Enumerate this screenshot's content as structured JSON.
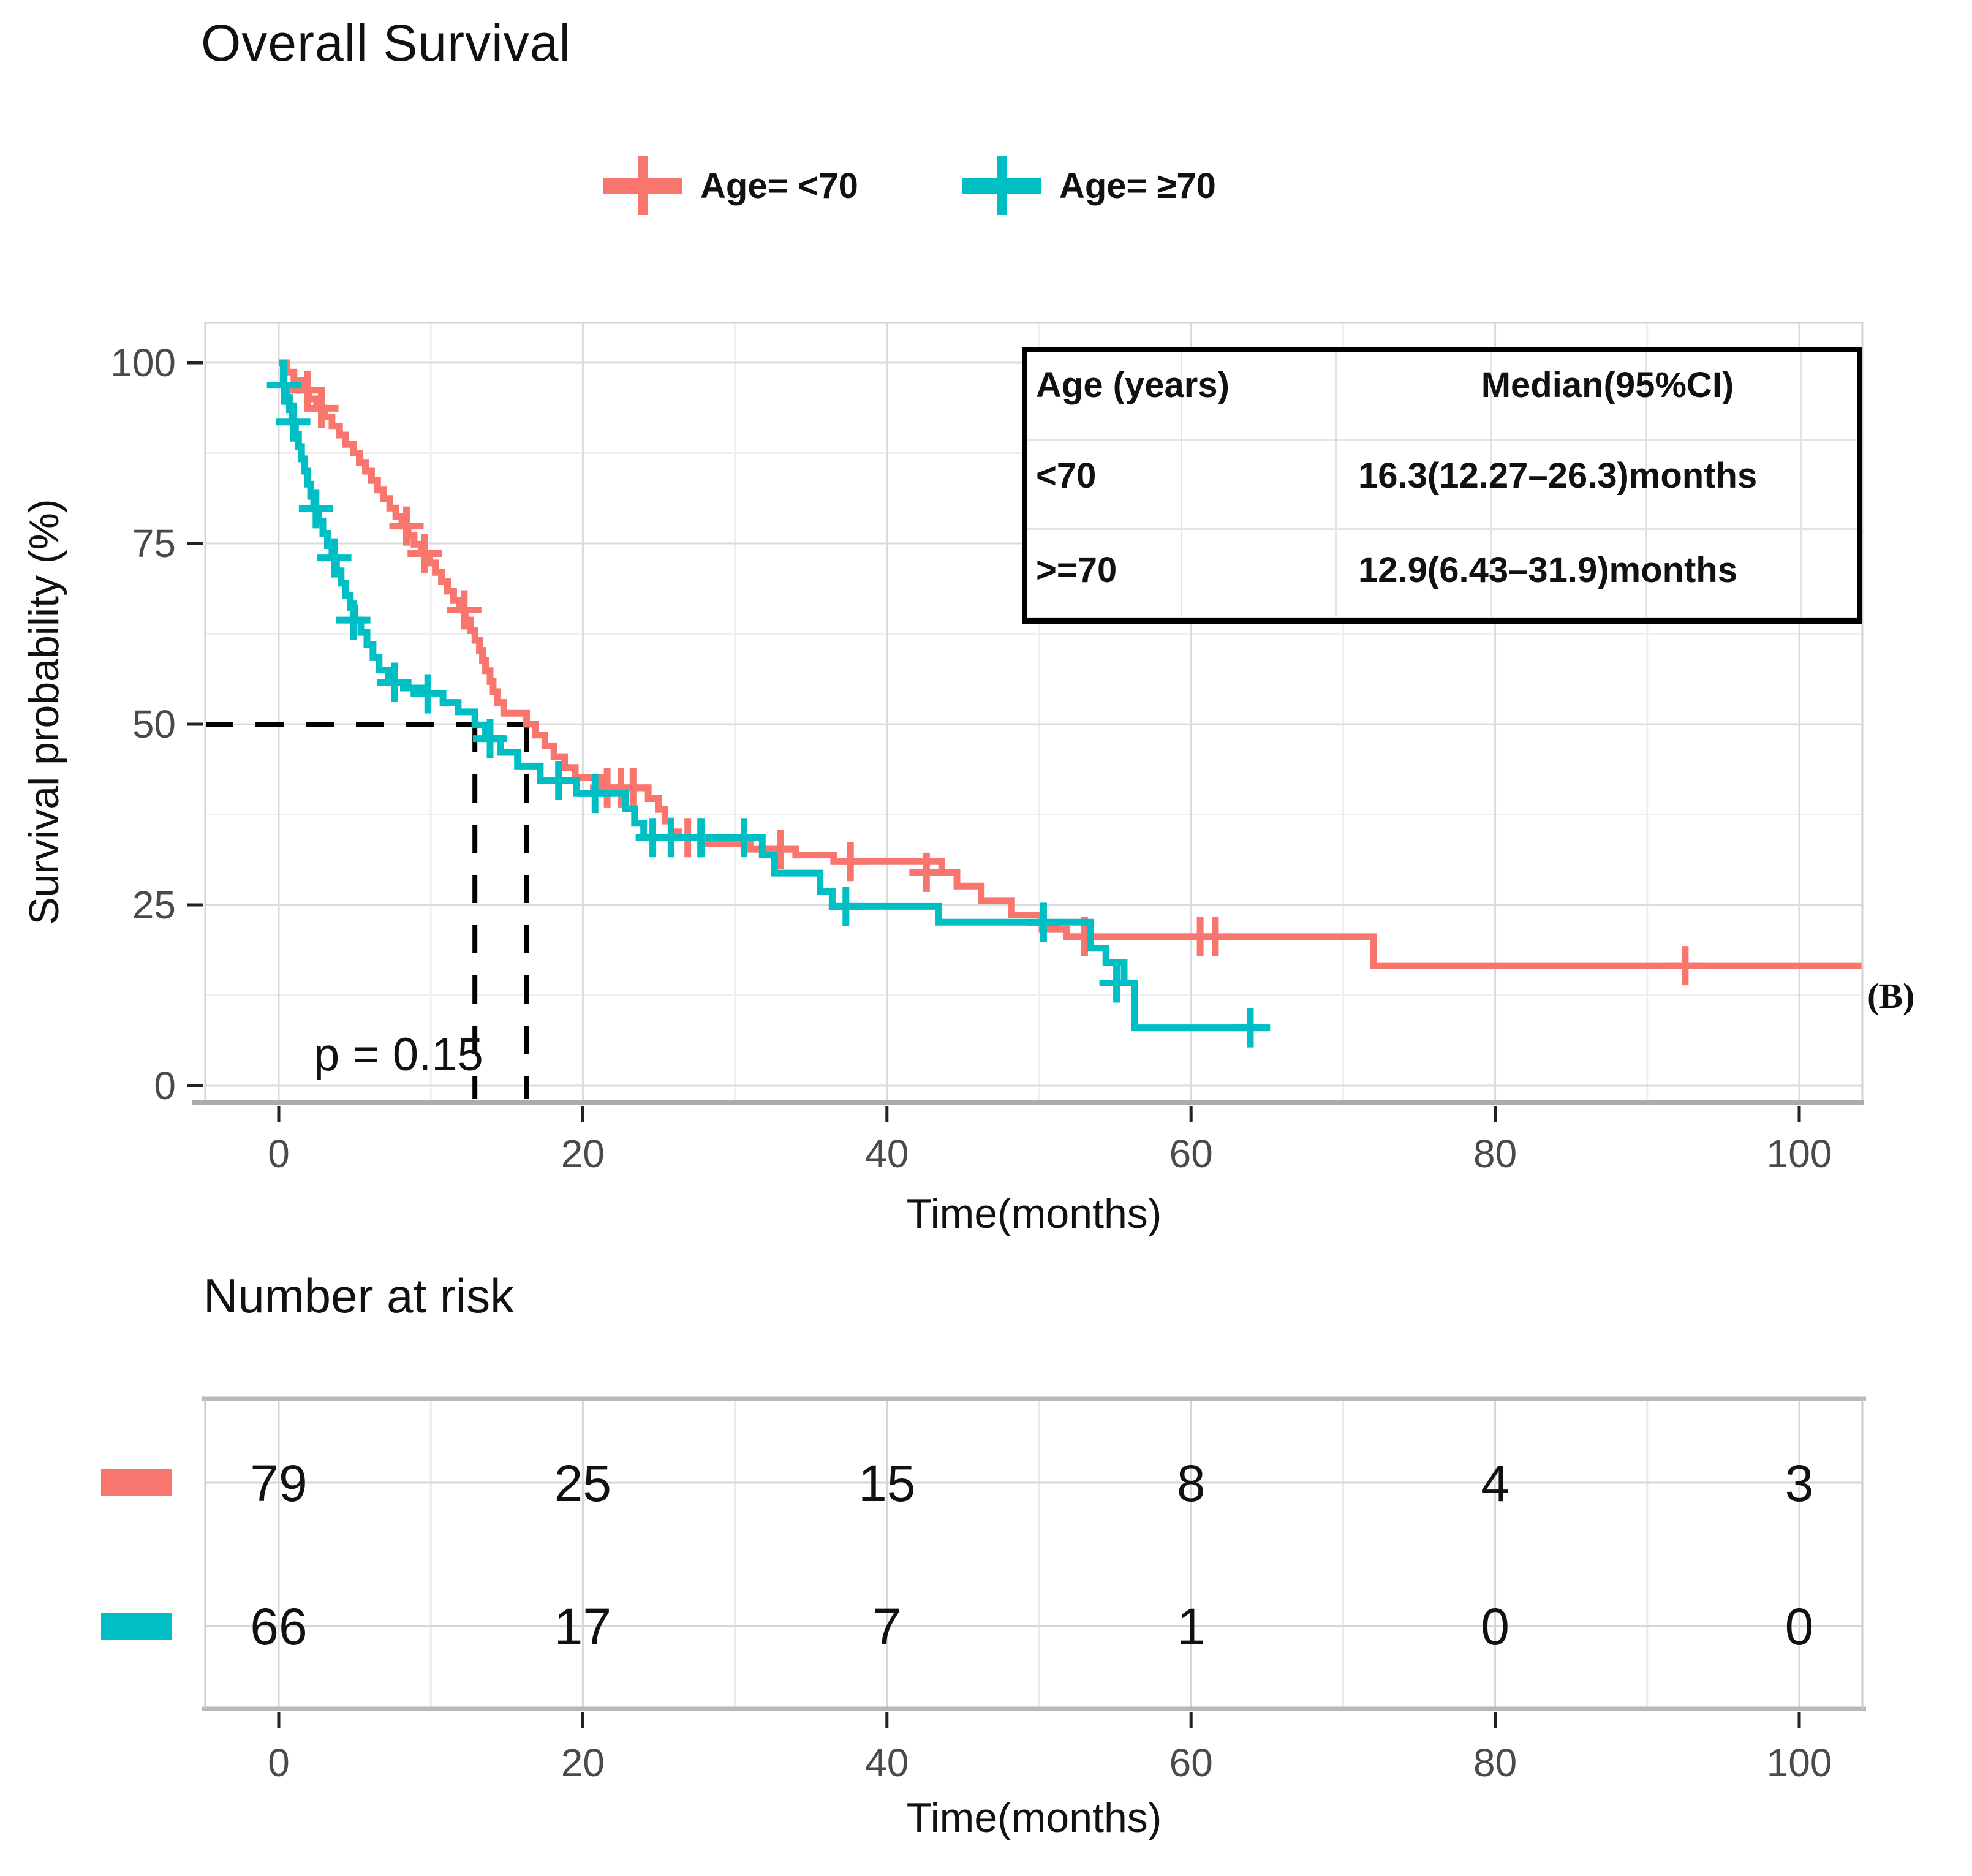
{
  "title": "Overall Survival",
  "panel_label": "(B)",
  "legend": {
    "items": [
      {
        "label": "Age= <70",
        "color": "#F8766D"
      },
      {
        "label": "Age= ≥70",
        "color": "#00BFC4"
      }
    ]
  },
  "chart_data": {
    "type": "line",
    "subtype": "kaplan-meier-step",
    "title": "Overall Survival",
    "xlabel": "Time(months)",
    "ylabel": "Survival probability (%)",
    "xlim": [
      -5,
      104.5
    ],
    "ylim": [
      -2,
      105.5
    ],
    "x_ticks": [
      0,
      20,
      40,
      60,
      80,
      100
    ],
    "y_ticks": [
      0,
      25,
      50,
      75,
      100
    ],
    "x_minor_gridlines": [
      10,
      30,
      50,
      70,
      90
    ],
    "y_minor_gridlines": [
      12.5,
      37.5,
      62.5,
      87.5
    ],
    "grid": true,
    "legend_position": "top-center",
    "p_value_text": "p = 0.15",
    "median_lines": {
      "y": 50,
      "x_values": [
        12.9,
        16.3
      ]
    },
    "series": [
      {
        "name": "Age= <70",
        "color": "#F8766D",
        "end_time": 104.3,
        "steps": [
          [
            0,
            100
          ],
          [
            0.5,
            98.7
          ],
          [
            1,
            97.5
          ],
          [
            1.5,
            96.2
          ],
          [
            2,
            95
          ],
          [
            2.5,
            93.7
          ],
          [
            3,
            92.5
          ],
          [
            3.5,
            91.2
          ],
          [
            4,
            90
          ],
          [
            4.4,
            88.7
          ],
          [
            4.9,
            87.5
          ],
          [
            5.3,
            86.2
          ],
          [
            5.7,
            85
          ],
          [
            6.1,
            83.7
          ],
          [
            6.5,
            82.4
          ],
          [
            6.9,
            81.2
          ],
          [
            7.3,
            79.9
          ],
          [
            7.7,
            78.7
          ],
          [
            8.1,
            77.4
          ],
          [
            8.5,
            76.1
          ],
          [
            8.9,
            74.9
          ],
          [
            9.4,
            73.6
          ],
          [
            9.9,
            72.3
          ],
          [
            10.3,
            71
          ],
          [
            10.7,
            69.7
          ],
          [
            11.1,
            68.4
          ],
          [
            11.5,
            67.1
          ],
          [
            11.9,
            65.8
          ],
          [
            12.3,
            64.4
          ],
          [
            12.6,
            63
          ],
          [
            12.9,
            61.6
          ],
          [
            13.2,
            60.2
          ],
          [
            13.4,
            58.8
          ],
          [
            13.6,
            57.4
          ],
          [
            13.9,
            55.9
          ],
          [
            14.1,
            54.5
          ],
          [
            14.4,
            53
          ],
          [
            14.8,
            51.5
          ],
          [
            16.3,
            50
          ],
          [
            16.9,
            48.5
          ],
          [
            17.5,
            47
          ],
          [
            18.1,
            45.5
          ],
          [
            18.8,
            44
          ],
          [
            19.5,
            42.6
          ],
          [
            21.2,
            41.2
          ],
          [
            24.3,
            39.7
          ],
          [
            25,
            38.2
          ],
          [
            25.4,
            36.6
          ],
          [
            25.8,
            35.1
          ],
          [
            26.3,
            34.3
          ],
          [
            28,
            33.5
          ],
          [
            31,
            32.7
          ],
          [
            34,
            31.9
          ],
          [
            36.5,
            31
          ],
          [
            43.6,
            29.5
          ],
          [
            44.6,
            27.6
          ],
          [
            46.2,
            25.6
          ],
          [
            48.2,
            23.6
          ],
          [
            50.2,
            21.6
          ],
          [
            51.8,
            20.6
          ],
          [
            72,
            16.6
          ]
        ],
        "censor_marks": [
          [
            1.9,
            96.2
          ],
          [
            2.8,
            93.7
          ],
          [
            8.4,
            77.4
          ],
          [
            9.6,
            73.6
          ],
          [
            12.2,
            65.8
          ],
          [
            21.6,
            41.2
          ],
          [
            22.5,
            41.2
          ],
          [
            23.3,
            41.2
          ],
          [
            26.9,
            34.3
          ],
          [
            27.7,
            34.3
          ],
          [
            33,
            32.7
          ],
          [
            37.6,
            31
          ],
          [
            42.6,
            29.5
          ],
          [
            53,
            20.6
          ],
          [
            60.6,
            20.6
          ],
          [
            61.6,
            20.6
          ],
          [
            92.5,
            16.6
          ]
        ]
      },
      {
        "name": "Age= ≥70",
        "color": "#00BFC4",
        "end_time": 65.2,
        "steps": [
          [
            0,
            100
          ],
          [
            0.3,
            96.9
          ],
          [
            0.5,
            95.2
          ],
          [
            0.7,
            93.5
          ],
          [
            0.9,
            91.8
          ],
          [
            1.1,
            90.1
          ],
          [
            1.3,
            88.4
          ],
          [
            1.5,
            86.7
          ],
          [
            1.7,
            85
          ],
          [
            1.9,
            83.2
          ],
          [
            2.1,
            81.5
          ],
          [
            2.3,
            79.8
          ],
          [
            2.6,
            78.1
          ],
          [
            2.9,
            76.4
          ],
          [
            3.2,
            74.7
          ],
          [
            3.5,
            73
          ],
          [
            3.8,
            71.2
          ],
          [
            4.1,
            69.5
          ],
          [
            4.4,
            67.8
          ],
          [
            4.7,
            66.1
          ],
          [
            5,
            64.4
          ],
          [
            5.4,
            62.7
          ],
          [
            5.8,
            61
          ],
          [
            6.2,
            59.2
          ],
          [
            6.6,
            57.5
          ],
          [
            7.2,
            55.8
          ],
          [
            8.2,
            55
          ],
          [
            9.6,
            54.2
          ],
          [
            10.8,
            53
          ],
          [
            11.8,
            51.7
          ],
          [
            12.9,
            49.9
          ],
          [
            13.6,
            48
          ],
          [
            14.6,
            46.1
          ],
          [
            15.7,
            44.2
          ],
          [
            17.2,
            42.2
          ],
          [
            19.6,
            40.4
          ],
          [
            22.8,
            38.3
          ],
          [
            23.4,
            36.3
          ],
          [
            24,
            34.3
          ],
          [
            31.8,
            31.9
          ],
          [
            32.6,
            29.4
          ],
          [
            35.6,
            26.9
          ],
          [
            36.4,
            24.8
          ],
          [
            43.4,
            22.6
          ],
          [
            53.4,
            19
          ],
          [
            54.4,
            17
          ],
          [
            55.6,
            14.2
          ],
          [
            56.3,
            8
          ]
        ],
        "censor_marks": [
          [
            0.35,
            96.9
          ],
          [
            0.95,
            91.8
          ],
          [
            2.45,
            79.8
          ],
          [
            3.65,
            73
          ],
          [
            4.9,
            64.4
          ],
          [
            7.6,
            55.8
          ],
          [
            9.8,
            54.2
          ],
          [
            13.9,
            48
          ],
          [
            18.4,
            42.2
          ],
          [
            20.8,
            40.4
          ],
          [
            24.6,
            34.3
          ],
          [
            25.8,
            34.3
          ],
          [
            27.8,
            34.3
          ],
          [
            30.6,
            34.3
          ],
          [
            37.3,
            24.8
          ],
          [
            50.3,
            22.6
          ],
          [
            55.1,
            14.2
          ],
          [
            63.9,
            8
          ]
        ]
      }
    ],
    "inset_table": {
      "col1_header": "Age (years)",
      "col2_header": "Median(95%CI)",
      "rows": [
        {
          "group": "<70",
          "median": "16.3(12.27–26.3)months"
        },
        {
          "group": ">=70",
          "median": "12.9(6.43–31.9)months"
        }
      ]
    },
    "risk_table": {
      "title": "Number at risk",
      "xlabel": "Time(months)",
      "times": [
        0,
        20,
        40,
        60,
        80,
        100
      ],
      "rows": [
        {
          "name": "Age= <70",
          "color": "#F8766D",
          "counts": [
            79,
            25,
            15,
            8,
            4,
            3
          ]
        },
        {
          "name": "Age= ≥70",
          "color": "#00BFC4",
          "counts": [
            66,
            17,
            7,
            1,
            0,
            0
          ]
        }
      ]
    },
    "colors": {
      "major_grid": "#DBDBDB",
      "minor_grid": "#EFEFEF",
      "panel_border": "#D3D3D3",
      "axis_line": "#ACACAC",
      "tick_label": "#4a4a4a",
      "median_dash": "#000000"
    }
  }
}
